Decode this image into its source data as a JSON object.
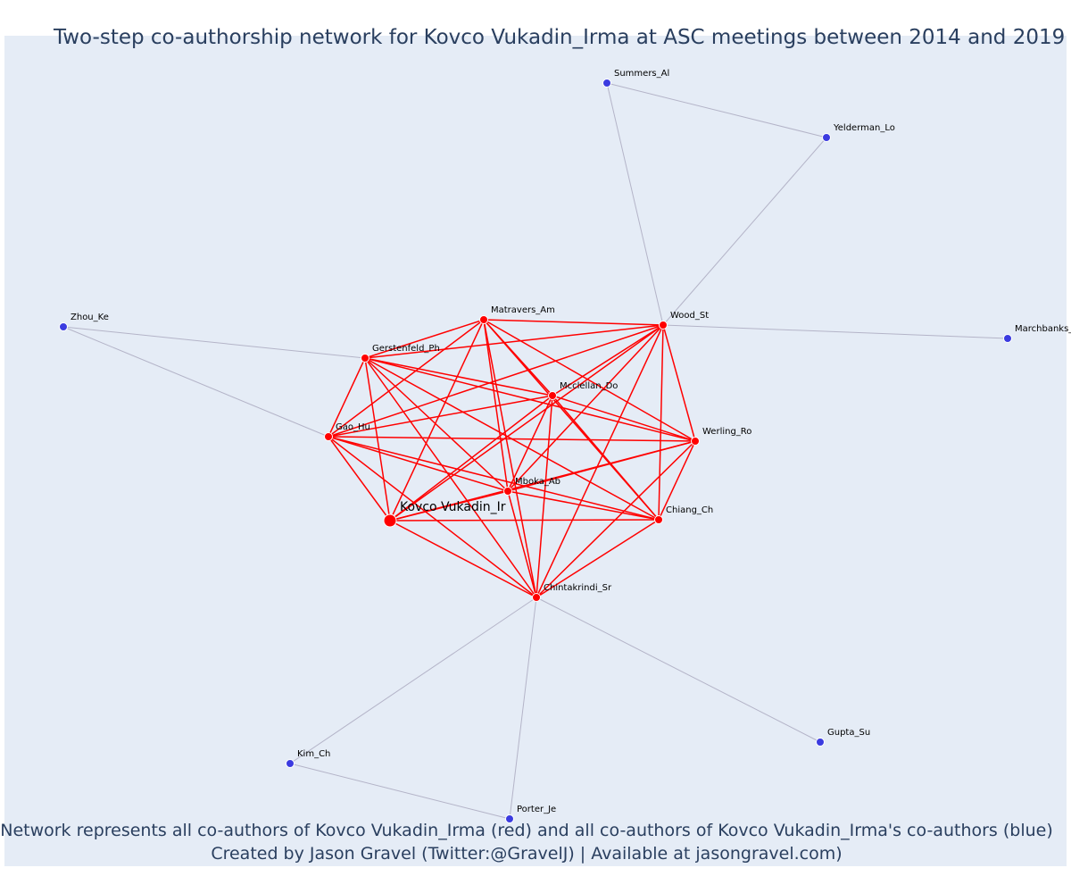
{
  "title": "Two-step co-authorship network for Kovco Vukadin_Irma at ASC meetings between 2014 and 2019",
  "caption_line1": "Network represents all co-authors of Kovco Vukadin_Irma (red) and all co-authors of Kovco Vukadin_Irma's co-authors (blue)",
  "caption_line2": "Created by Jason Gravel (Twitter:@GravelJ) | Available at jasongravel.com)",
  "colors": {
    "direct": "#ff0000",
    "second_step": "#3b3be0",
    "edge_direct": "#ff0000",
    "edge_second": "#b4b4c8",
    "background": "#e5ecf6"
  },
  "nodes": [
    {
      "id": "ego",
      "label": "Kovco Vukadin_Ir",
      "group": "ego"
    },
    {
      "id": "matravers",
      "label": "Matravers_Am",
      "group": "direct"
    },
    {
      "id": "wood",
      "label": "Wood_St",
      "group": "direct"
    },
    {
      "id": "gerstenfeld",
      "label": "Gerstenfeld_Ph",
      "group": "direct"
    },
    {
      "id": "mcclellan",
      "label": "Mcclellan_Do",
      "group": "direct"
    },
    {
      "id": "gao",
      "label": "Gao_Hu",
      "group": "direct"
    },
    {
      "id": "werling",
      "label": "Werling_Ro",
      "group": "direct"
    },
    {
      "id": "mboka",
      "label": "Mboka_Ab",
      "group": "direct"
    },
    {
      "id": "chiang",
      "label": "Chiang_Ch",
      "group": "direct"
    },
    {
      "id": "chintakrindi",
      "label": "Chintakrindi_Sr",
      "group": "direct"
    },
    {
      "id": "summers",
      "label": "Summers_Al",
      "group": "second"
    },
    {
      "id": "yelderman",
      "label": "Yelderman_Lo",
      "group": "second"
    },
    {
      "id": "zhou",
      "label": "Zhou_Ke",
      "group": "second"
    },
    {
      "id": "marchbanks",
      "label": "Marchbanks_",
      "group": "second"
    },
    {
      "id": "gupta",
      "label": "Gupta_Su",
      "group": "second"
    },
    {
      "id": "kim",
      "label": "Kim_Ch",
      "group": "second"
    },
    {
      "id": "porter",
      "label": "Porter_Je",
      "group": "second"
    }
  ],
  "second_edges": [
    [
      "summers",
      "yelderman"
    ],
    [
      "summers",
      "wood"
    ],
    [
      "yelderman",
      "wood"
    ],
    [
      "wood",
      "marchbanks"
    ],
    [
      "zhou",
      "gerstenfeld"
    ],
    [
      "zhou",
      "gao"
    ],
    [
      "chintakrindi",
      "kim"
    ],
    [
      "chintakrindi",
      "porter"
    ],
    [
      "chintakrindi",
      "gupta"
    ],
    [
      "kim",
      "porter"
    ]
  ]
}
